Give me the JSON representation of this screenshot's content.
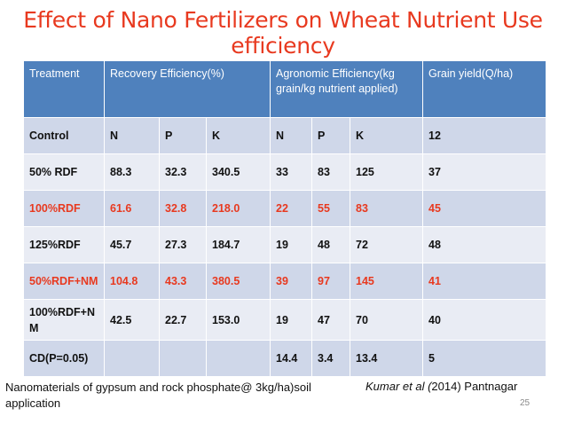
{
  "title": "Effect of Nano Fertilizers on Wheat  Nutrient Use efficiency",
  "table": {
    "headers": [
      "Treatment",
      "Recovery Efficiency(%)",
      "Agronomic Efficiency(kg grain/kg nutrient applied)",
      "Grain yield(Q/ha)"
    ],
    "rows": [
      [
        "Control",
        "N",
        "P",
        "K",
        "N",
        "P",
        "K",
        "12"
      ],
      [
        "50% RDF",
        "88.3",
        "32.3",
        "340.5",
        "33",
        "83",
        "125",
        "37"
      ],
      [
        "100%RDF",
        "61.6",
        "32.8",
        "218.0",
        "22",
        "55",
        "83",
        "45"
      ],
      [
        "125%RDF",
        "45.7",
        "27.3",
        "184.7",
        "19",
        "48",
        "72",
        "48"
      ],
      [
        "50%RDF+NM",
        "104.8",
        "43.3",
        "380.5",
        "39",
        "97",
        "145",
        "41"
      ],
      [
        "100%RDF+NM",
        "42.5",
        "22.7",
        "153.0",
        "19",
        "47",
        "70",
        "40"
      ],
      [
        "CD(P=0.05)",
        "",
        "",
        "",
        "14.4",
        "3.4",
        "13.4",
        "5"
      ]
    ],
    "highlight_color": "#e8391f",
    "header_color": "#4f81bd"
  },
  "footer": {
    "note": "Nanomaterials of gypsum and rock phosphate@ 3kg/ha)soil application",
    "citation_italic": "Kumar  et al (",
    "citation_rest": "2014) Pantnagar"
  },
  "page_number": "25"
}
